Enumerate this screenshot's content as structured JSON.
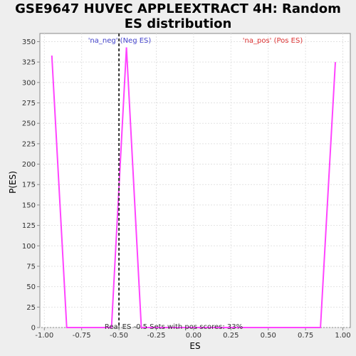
{
  "title_line1": "GSE9647 HUVEC APPLEEXTRACT 4H: Random",
  "title_line2": "ES distribution",
  "chart_data": {
    "type": "line",
    "xlabel": "ES",
    "ylabel": "P(ES)",
    "xlim": [
      -1.03,
      1.05
    ],
    "ylim": [
      0,
      360
    ],
    "x_ticks": [
      -1.0,
      -0.75,
      -0.5,
      -0.25,
      0.0,
      0.25,
      0.5,
      0.75,
      1.0
    ],
    "x_tick_labels": [
      "-1.00",
      "-0.75",
      "-0.50",
      "-0.25",
      "0.00",
      "0.25",
      "0.50",
      "0.75",
      "1.00"
    ],
    "y_ticks": [
      0,
      25,
      50,
      75,
      100,
      125,
      150,
      175,
      200,
      225,
      250,
      275,
      300,
      325,
      350
    ],
    "grid": true,
    "series": [
      {
        "color": "#ff44ff",
        "x": [
          -0.95,
          -0.85,
          -0.75,
          -0.65,
          -0.55,
          -0.45,
          -0.35,
          -0.25,
          -0.15,
          -0.05,
          0.05,
          0.15,
          0.25,
          0.35,
          0.45,
          0.55,
          0.65,
          0.75,
          0.85,
          0.95
        ],
        "y": [
          333,
          0,
          0,
          0,
          0,
          343,
          0,
          0,
          0,
          0,
          0,
          0,
          0,
          0,
          0,
          0,
          0,
          0,
          0,
          325
        ]
      }
    ],
    "real_es": -0.5,
    "real_es_color": "#333333",
    "annotations": {
      "neg_label": "'na_neg' (Neg ES)",
      "neg_color": "#4444cc",
      "pos_label": "'na_pos' (Pos ES)",
      "pos_color": "#dd3333",
      "bottom_text": "Real ES -0.5 Sets with pos scores: 33%"
    }
  }
}
